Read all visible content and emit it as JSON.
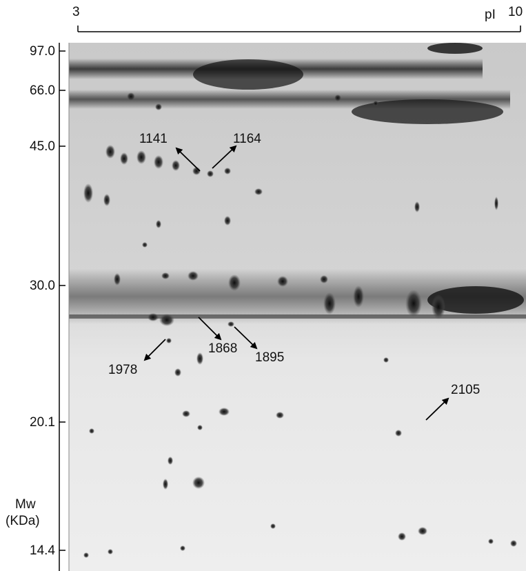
{
  "pi_axis": {
    "start_label": "3",
    "unit_label": "pI",
    "end_label": "10"
  },
  "mw_axis": {
    "marks": [
      "97.0",
      "66.0",
      "45.0",
      "30.0",
      "20.1",
      "14.4"
    ],
    "title_line1": "Mw",
    "title_line2": "(KDa)"
  },
  "spots": [
    {
      "label": "1141"
    },
    {
      "label": "1164"
    },
    {
      "label": "1868"
    },
    {
      "label": "1895"
    },
    {
      "label": "1978"
    },
    {
      "label": "2105"
    }
  ],
  "colors": {
    "gel_background": "#d9d9d9",
    "spot": "#1a1a1a",
    "axis": "#000000"
  }
}
